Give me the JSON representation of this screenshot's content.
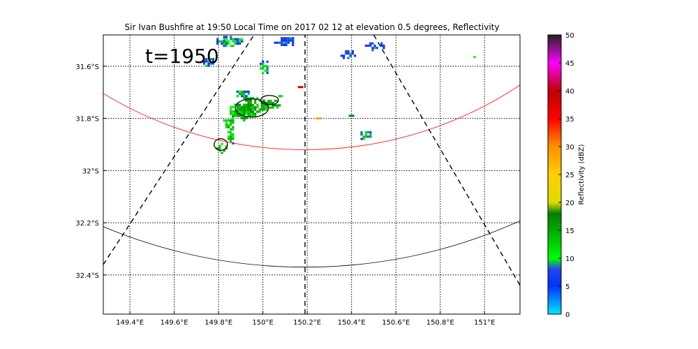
{
  "title": "Sir Ivan Bushfire at 19:50 Local Time on 2017 02 12 at elevation 0.5 degrees, Reflectivity",
  "time_label": "t=1950",
  "map": {
    "lon_range": [
      149.28,
      151.16
    ],
    "lat_range": [
      -32.55,
      -31.48
    ],
    "lon_ticks": [
      {
        "value": 149.4,
        "label": "149.4°E"
      },
      {
        "value": 149.6,
        "label": "149.6°E"
      },
      {
        "value": 149.8,
        "label": "149.8°E"
      },
      {
        "value": 150.0,
        "label": "150°E"
      },
      {
        "value": 150.2,
        "label": "150.2°E"
      },
      {
        "value": 150.4,
        "label": "150.4°E"
      },
      {
        "value": 150.6,
        "label": "150.6°E"
      },
      {
        "value": 150.8,
        "label": "150.8°E"
      },
      {
        "value": 151.0,
        "label": "151°E"
      }
    ],
    "lat_ticks": [
      {
        "value": -31.6,
        "label": "31.6°S"
      },
      {
        "value": -31.8,
        "label": "31.8°S"
      },
      {
        "value": -32.0,
        "label": "32°S"
      },
      {
        "value": -32.2,
        "label": "32.2°S"
      },
      {
        "value": -32.4,
        "label": "32.4°S"
      }
    ],
    "grid": true,
    "radar": {
      "lon": 150.19,
      "lat": -30.58
    },
    "range_rings": [
      {
        "radius_deg_lat": 1.34,
        "color": "#ff0000"
      },
      {
        "radius_deg_lat": 1.79,
        "color": "#000000"
      }
    ],
    "radials": [
      {
        "from": [
          149.28,
          -32.36
        ],
        "to": [
          149.96,
          -31.48
        ]
      },
      {
        "from": [
          150.19,
          -32.55
        ],
        "to": [
          150.19,
          -31.48
        ]
      },
      {
        "from": [
          150.5,
          -31.48
        ],
        "to": [
          151.16,
          -32.44
        ]
      }
    ]
  },
  "chart_data": {
    "type": "heatmap",
    "title": "Sir Ivan Bushfire at 19:50 Local Time on 2017 02 12 at elevation 0.5 degrees, Reflectivity",
    "field": "Reflectivity (dBZ)",
    "xlabel": "",
    "ylabel": "",
    "xlim": [
      149.28,
      151.16
    ],
    "ylim": [
      -32.55,
      -31.48
    ],
    "clim": [
      0,
      50
    ],
    "echo_regions": [
      {
        "lon": 149.9,
        "lat": -31.77,
        "rlon": 0.06,
        "rlat": 0.035,
        "dbz": 15
      },
      {
        "lon": 149.95,
        "lat": -31.75,
        "rlon": 0.07,
        "rlat": 0.04,
        "dbz": 16
      },
      {
        "lon": 150.03,
        "lat": -31.74,
        "rlon": 0.05,
        "rlat": 0.02,
        "dbz": 15
      },
      {
        "lon": 149.84,
        "lat": -31.82,
        "rlon": 0.04,
        "rlat": 0.025,
        "dbz": 14
      },
      {
        "lon": 149.81,
        "lat": -31.91,
        "rlon": 0.03,
        "rlat": 0.025,
        "dbz": 15
      },
      {
        "lon": 149.85,
        "lat": -31.87,
        "rlon": 0.02,
        "rlat": 0.03,
        "dbz": 12
      },
      {
        "lon": 150.0,
        "lat": -31.6,
        "rlon": 0.025,
        "rlat": 0.03,
        "dbz": 11
      },
      {
        "lon": 149.9,
        "lat": -31.7,
        "rlon": 0.05,
        "rlat": 0.015,
        "dbz": 11
      },
      {
        "lon": 149.75,
        "lat": -31.58,
        "rlon": 0.03,
        "rlat": 0.02,
        "dbz": 8
      },
      {
        "lon": 149.85,
        "lat": -31.5,
        "rlon": 0.07,
        "rlat": 0.025,
        "dbz": 9
      },
      {
        "lon": 150.1,
        "lat": -31.5,
        "rlon": 0.06,
        "rlat": 0.02,
        "dbz": 7
      },
      {
        "lon": 150.38,
        "lat": -31.55,
        "rlon": 0.04,
        "rlat": 0.02,
        "dbz": 7
      },
      {
        "lon": 150.5,
        "lat": -31.52,
        "rlon": 0.05,
        "rlat": 0.02,
        "dbz": 7
      },
      {
        "lon": 150.46,
        "lat": -31.86,
        "rlon": 0.03,
        "rlat": 0.02,
        "dbz": 11
      },
      {
        "lon": 150.95,
        "lat": -31.56,
        "rlon": 0.01,
        "rlat": 0.008,
        "dbz": 12
      },
      {
        "lon": 150.08,
        "lat": -31.71,
        "rlon": 0.02,
        "rlat": 0.008,
        "dbz": 12
      }
    ],
    "point_echoes": [
      {
        "lon": 150.17,
        "lat": -31.68,
        "dbz": 38
      },
      {
        "lon": 150.25,
        "lat": -31.8,
        "dbz": 28
      },
      {
        "lon": 150.4,
        "lat": -31.79,
        "dbz": 18
      }
    ],
    "contours": [
      {
        "lon": 149.95,
        "lat": -31.76,
        "rlon": 0.075,
        "rlat": 0.035
      },
      {
        "lon": 150.03,
        "lat": -31.73,
        "rlon": 0.04,
        "rlat": 0.018
      },
      {
        "lon": 149.81,
        "lat": -31.9,
        "rlon": 0.03,
        "rlat": 0.022
      }
    ]
  },
  "colorbar": {
    "label": "Reflectivity (dBZ)",
    "min": 0,
    "max": 50,
    "ticks": [
      0,
      5,
      10,
      15,
      20,
      25,
      30,
      35,
      40,
      45,
      50
    ],
    "stops": [
      {
        "value": 0,
        "color": "#00e5ff"
      },
      {
        "value": 5,
        "color": "#0033ff"
      },
      {
        "value": 8,
        "color": "#2244ee"
      },
      {
        "value": 10,
        "color": "#00ff00"
      },
      {
        "value": 15,
        "color": "#00aa00"
      },
      {
        "value": 18,
        "color": "#008000"
      },
      {
        "value": 20,
        "color": "#dddd00"
      },
      {
        "value": 25,
        "color": "#ffd000"
      },
      {
        "value": 30,
        "color": "#ff9000"
      },
      {
        "value": 35,
        "color": "#ff0000"
      },
      {
        "value": 40,
        "color": "#c00000"
      },
      {
        "value": 45,
        "color": "#ff00ff"
      },
      {
        "value": 50,
        "color": "#222222"
      }
    ]
  }
}
